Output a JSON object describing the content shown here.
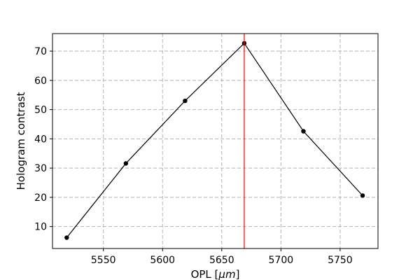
{
  "chart_data": {
    "type": "line",
    "title": "",
    "xlabel": "OPL [",
    "xlabel_unit": "μm",
    "xlabel_close": "]",
    "ylabel": "Hologram contrast",
    "xlim": [
      5507,
      5782
    ],
    "ylim": [
      2.5,
      76
    ],
    "xticks": [
      5550,
      5600,
      5650,
      5700,
      5750
    ],
    "yticks": [
      10,
      20,
      30,
      40,
      50,
      60,
      70
    ],
    "grid": true,
    "series": [
      {
        "x": [
          5519,
          5569,
          5619,
          5669,
          5719,
          5769
        ],
        "y": [
          6.2,
          31.6,
          53.0,
          72.7,
          42.6,
          20.6
        ],
        "color": "#000000"
      }
    ],
    "reference_line": {
      "x": 5669,
      "color": "#ff0000"
    }
  }
}
